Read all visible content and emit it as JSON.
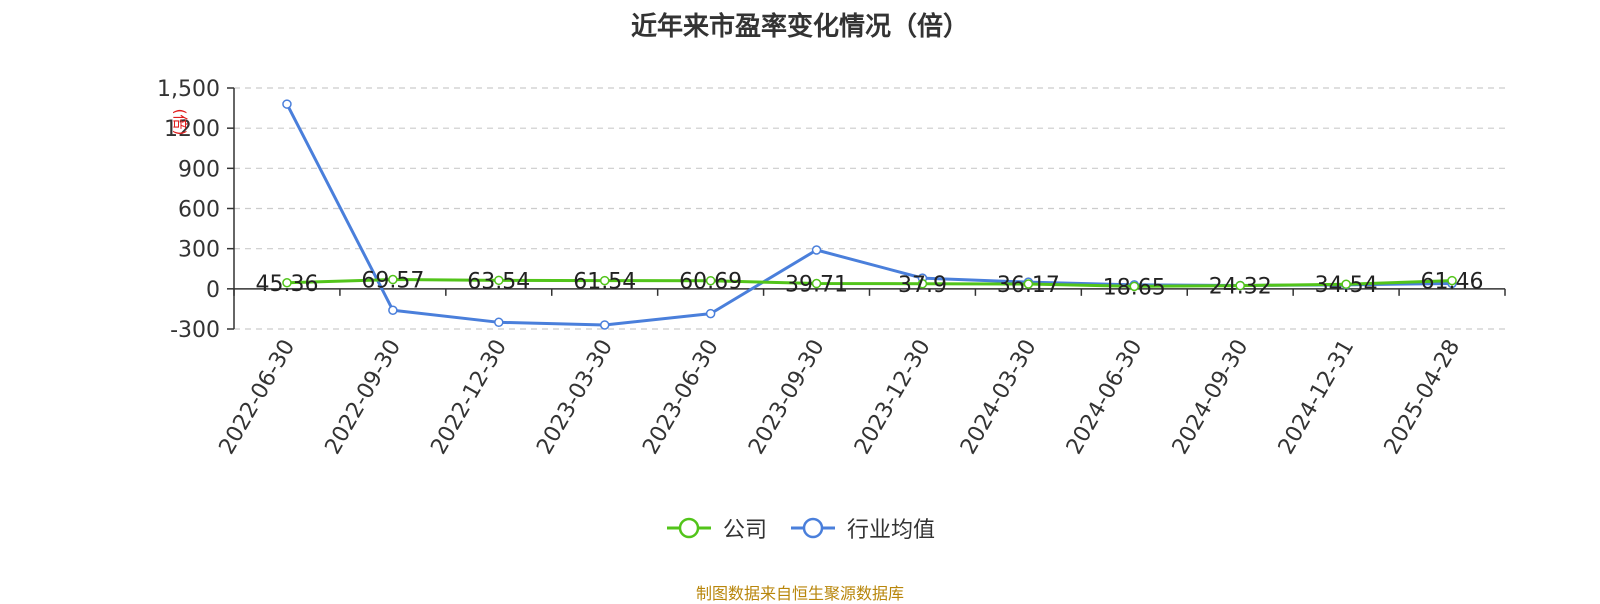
{
  "chart_data": {
    "type": "line",
    "title": "近年来市盈率变化情况（倍）",
    "ylabel": "(倍)",
    "categories": [
      "2022-06-30",
      "2022-09-30",
      "2022-12-30",
      "2023-03-30",
      "2023-06-30",
      "2023-09-30",
      "2023-12-30",
      "2024-03-30",
      "2024-06-30",
      "2024-09-30",
      "2024-12-31",
      "2025-04-28"
    ],
    "yticks": [
      "1,500",
      "1200",
      "900",
      "600",
      "300",
      "0",
      "-300"
    ],
    "ytick_values": [
      1500,
      1200,
      900,
      600,
      300,
      0,
      -300
    ],
    "ylim": [
      -300,
      1500
    ],
    "grid": true,
    "legend_position": "bottom",
    "series": [
      {
        "name": "公司",
        "color": "#52c41a",
        "values": [
          45.36,
          69.57,
          63.54,
          61.54,
          60.69,
          39.71,
          37.9,
          36.17,
          18.65,
          24.32,
          34.54,
          61.46
        ],
        "labels": [
          "45.36",
          "69.57",
          "63.54",
          "61.54",
          "60.69",
          "39.71",
          "37.9",
          "36.17",
          "18.65",
          "24.32",
          "34.54",
          "61.46"
        ]
      },
      {
        "name": "行业均值",
        "color": "#4a7fdb",
        "values": [
          1380,
          -160,
          -250,
          -270,
          -185,
          290,
          80,
          50,
          30,
          25,
          30,
          40
        ]
      }
    ]
  },
  "footer": {
    "source": "制图数据来自恒生聚源数据库"
  }
}
